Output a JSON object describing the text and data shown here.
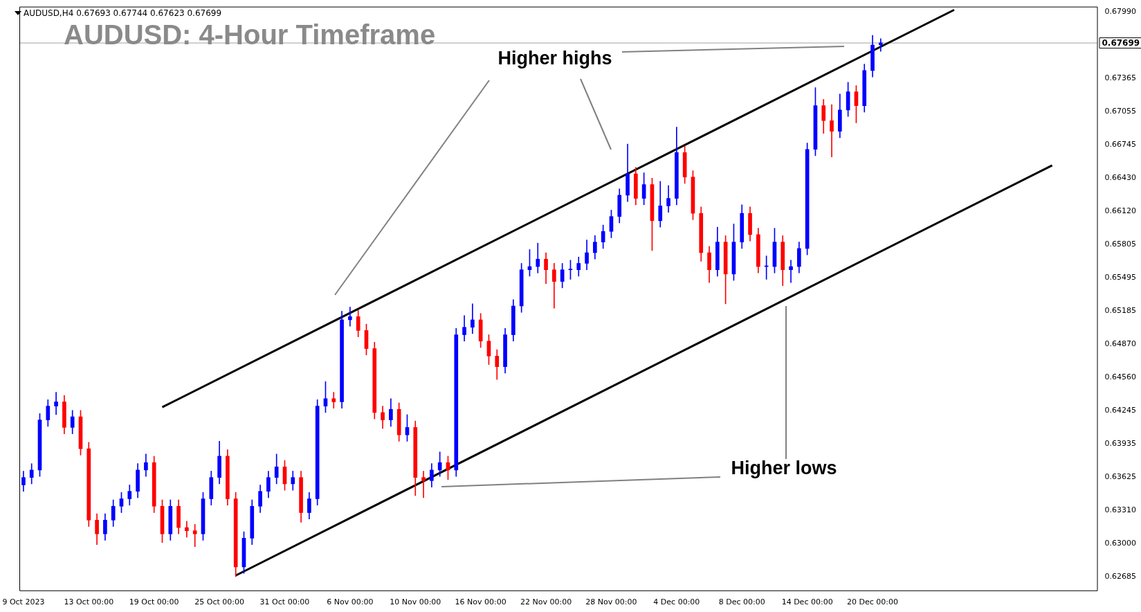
{
  "chart_data": {
    "type": "candlestick",
    "title": "AUDUSD: 4-Hour Timeframe",
    "annotations": [
      "AUDUSD,H4  0.67693 0.67744 0.67623 0.67699",
      "Higher highs",
      "Higher lows"
    ],
    "categories": [
      "9 Oct 2023",
      null,
      null,
      null,
      null,
      null,
      null,
      null,
      "13 Oct 00:00",
      null,
      null,
      null,
      null,
      null,
      null,
      null,
      "19 Oct 00:00",
      null,
      null,
      null,
      null,
      null,
      null,
      null,
      "25 Oct 00:00",
      null,
      null,
      null,
      null,
      null,
      null,
      null,
      "31 Oct 00:00",
      null,
      null,
      null,
      null,
      null,
      null,
      null,
      "6 Nov 00:00",
      null,
      null,
      null,
      null,
      null,
      null,
      null,
      "10 Nov 00:00",
      null,
      null,
      null,
      null,
      null,
      null,
      null,
      "16 Nov 00:00",
      null,
      null,
      null,
      null,
      null,
      null,
      null,
      "22 Nov 00:00",
      null,
      null,
      null,
      null,
      null,
      null,
      null,
      "28 Nov 00:00",
      null,
      null,
      null,
      null,
      null,
      null,
      null,
      "4 Dec 00:00",
      null,
      null,
      null,
      null,
      null,
      null,
      null,
      "8 Dec 00:00",
      null,
      null,
      null,
      null,
      null,
      null,
      null,
      "14 Dec 00:00",
      null,
      null,
      null,
      null,
      null,
      null,
      null,
      "20 Dec 00:00",
      null,
      null,
      null,
      null,
      null,
      null,
      null,
      null,
      null,
      null,
      null,
      null,
      null,
      null,
      null,
      null,
      null,
      null,
      null,
      null,
      null,
      null,
      null,
      null,
      null,
      null,
      null
    ],
    "ohlc": [
      [
        0.6355,
        0.6368,
        0.6349,
        0.6362
      ],
      [
        0.6362,
        0.6375,
        0.6356,
        0.6369
      ],
      [
        0.6369,
        0.6422,
        0.6363,
        0.6416
      ],
      [
        0.6416,
        0.6435,
        0.641,
        0.6429
      ],
      [
        0.6429,
        0.6442,
        0.6421,
        0.6433
      ],
      [
        0.6433,
        0.6439,
        0.6403,
        0.6409
      ],
      [
        0.6409,
        0.6425,
        0.6403,
        0.6419
      ],
      [
        0.6419,
        0.6425,
        0.6383,
        0.6389
      ],
      [
        0.6389,
        0.6395,
        0.6316,
        0.6322
      ],
      [
        0.6322,
        0.6328,
        0.6299,
        0.6309
      ],
      [
        0.6309,
        0.6328,
        0.6303,
        0.6322
      ],
      [
        0.6322,
        0.6341,
        0.6316,
        0.6335
      ],
      [
        0.6335,
        0.6348,
        0.6329,
        0.6342
      ],
      [
        0.6342,
        0.6355,
        0.6336,
        0.6349
      ],
      [
        0.6349,
        0.6375,
        0.6343,
        0.6369
      ],
      [
        0.6369,
        0.6384,
        0.6363,
        0.6376
      ],
      [
        0.6376,
        0.6382,
        0.6329,
        0.6335
      ],
      [
        0.6335,
        0.6341,
        0.6301,
        0.6309
      ],
      [
        0.6309,
        0.6341,
        0.6303,
        0.6335
      ],
      [
        0.6335,
        0.6341,
        0.6309,
        0.6315
      ],
      [
        0.6315,
        0.6321,
        0.6306,
        0.6312
      ],
      [
        0.6312,
        0.6318,
        0.6297,
        0.6309
      ],
      [
        0.6309,
        0.6348,
        0.6303,
        0.6342
      ],
      [
        0.6342,
        0.6368,
        0.6336,
        0.6362
      ],
      [
        0.6362,
        0.6396,
        0.6356,
        0.6382
      ],
      [
        0.6382,
        0.6388,
        0.6336,
        0.6342
      ],
      [
        0.6342,
        0.6348,
        0.6269,
        0.6278
      ],
      [
        0.6278,
        0.6311,
        0.6272,
        0.6305
      ],
      [
        0.6305,
        0.6341,
        0.6299,
        0.6335
      ],
      [
        0.6335,
        0.6355,
        0.6329,
        0.6349
      ],
      [
        0.6349,
        0.6368,
        0.6343,
        0.6362
      ],
      [
        0.6362,
        0.6384,
        0.6356,
        0.6372
      ],
      [
        0.6372,
        0.6378,
        0.635,
        0.6356
      ],
      [
        0.6356,
        0.6368,
        0.635,
        0.6362
      ],
      [
        0.6362,
        0.6368,
        0.632,
        0.6329
      ],
      [
        0.6329,
        0.6348,
        0.6323,
        0.6342
      ],
      [
        0.6342,
        0.6435,
        0.6336,
        0.6429
      ],
      [
        0.6429,
        0.6452,
        0.6423,
        0.6436
      ],
      [
        0.6436,
        0.6442,
        0.6427,
        0.6433
      ],
      [
        0.6433,
        0.6518,
        0.6427,
        0.651
      ],
      [
        0.651,
        0.6522,
        0.6504,
        0.6513
      ],
      [
        0.6513,
        0.6519,
        0.6494,
        0.65
      ],
      [
        0.65,
        0.6506,
        0.6477,
        0.6483
      ],
      [
        0.6483,
        0.6489,
        0.6417,
        0.6423
      ],
      [
        0.6423,
        0.6429,
        0.6408,
        0.6416
      ],
      [
        0.6416,
        0.6436,
        0.641,
        0.6426
      ],
      [
        0.6426,
        0.6432,
        0.6396,
        0.6402
      ],
      [
        0.6402,
        0.6421,
        0.6396,
        0.6409
      ],
      [
        0.6409,
        0.6415,
        0.6345,
        0.6362
      ],
      [
        0.6362,
        0.6368,
        0.6343,
        0.6359
      ],
      [
        0.6359,
        0.6375,
        0.6353,
        0.6369
      ],
      [
        0.6369,
        0.6386,
        0.6363,
        0.6376
      ],
      [
        0.6376,
        0.6382,
        0.636,
        0.6369
      ],
      [
        0.6369,
        0.6502,
        0.6363,
        0.6496
      ],
      [
        0.6496,
        0.6514,
        0.649,
        0.6503
      ],
      [
        0.6503,
        0.6525,
        0.6497,
        0.651
      ],
      [
        0.651,
        0.6516,
        0.6484,
        0.649
      ],
      [
        0.649,
        0.6496,
        0.6468,
        0.6476
      ],
      [
        0.6476,
        0.6482,
        0.6454,
        0.6466
      ],
      [
        0.6466,
        0.6502,
        0.646,
        0.6496
      ],
      [
        0.6496,
        0.6529,
        0.649,
        0.6523
      ],
      [
        0.6523,
        0.6563,
        0.6517,
        0.6557
      ],
      [
        0.6557,
        0.6576,
        0.6551,
        0.656
      ],
      [
        0.656,
        0.6582,
        0.6554,
        0.6567
      ],
      [
        0.6567,
        0.6573,
        0.6544,
        0.6557
      ],
      [
        0.6557,
        0.6563,
        0.6521,
        0.6546
      ],
      [
        0.6546,
        0.6563,
        0.654,
        0.6557
      ],
      [
        0.6557,
        0.6566,
        0.6548,
        0.6557
      ],
      [
        0.6557,
        0.6569,
        0.6551,
        0.6563
      ],
      [
        0.6563,
        0.6585,
        0.6557,
        0.6573
      ],
      [
        0.6573,
        0.6589,
        0.6567,
        0.6583
      ],
      [
        0.6583,
        0.6599,
        0.6577,
        0.6593
      ],
      [
        0.6593,
        0.6613,
        0.6587,
        0.6607
      ],
      [
        0.6607,
        0.6633,
        0.6601,
        0.6627
      ],
      [
        0.6627,
        0.6675,
        0.6621,
        0.6647
      ],
      [
        0.6647,
        0.6653,
        0.6618,
        0.6624
      ],
      [
        0.6624,
        0.6648,
        0.6618,
        0.6637
      ],
      [
        0.6637,
        0.6643,
        0.6575,
        0.6603
      ],
      [
        0.6603,
        0.664,
        0.6597,
        0.6617
      ],
      [
        0.6617,
        0.6636,
        0.6611,
        0.6624
      ],
      [
        0.6624,
        0.6691,
        0.6618,
        0.6667
      ],
      [
        0.6667,
        0.6673,
        0.6638,
        0.6644
      ],
      [
        0.6644,
        0.665,
        0.6604,
        0.661
      ],
      [
        0.661,
        0.6616,
        0.6565,
        0.6573
      ],
      [
        0.6573,
        0.6579,
        0.6545,
        0.6557
      ],
      [
        0.6557,
        0.6597,
        0.6551,
        0.6583
      ],
      [
        0.6583,
        0.6589,
        0.6525,
        0.6553
      ],
      [
        0.6553,
        0.66,
        0.6547,
        0.6583
      ],
      [
        0.6583,
        0.6618,
        0.6577,
        0.661
      ],
      [
        0.661,
        0.6616,
        0.6584,
        0.659
      ],
      [
        0.659,
        0.6596,
        0.6554,
        0.656
      ],
      [
        0.656,
        0.657,
        0.6548,
        0.656
      ],
      [
        0.656,
        0.6596,
        0.6554,
        0.6583
      ],
      [
        0.6583,
        0.6589,
        0.6542,
        0.6557
      ],
      [
        0.6557,
        0.6566,
        0.6545,
        0.656
      ],
      [
        0.656,
        0.6583,
        0.6554,
        0.6577
      ],
      [
        0.6577,
        0.6676,
        0.6571,
        0.667
      ],
      [
        0.667,
        0.6728,
        0.6664,
        0.6711
      ],
      [
        0.6711,
        0.6717,
        0.6685,
        0.6697
      ],
      [
        0.6697,
        0.6712,
        0.6663,
        0.6687
      ],
      [
        0.6687,
        0.6722,
        0.6681,
        0.6707
      ],
      [
        0.6707,
        0.6733,
        0.6701,
        0.6724
      ],
      [
        0.6724,
        0.673,
        0.6695,
        0.6711
      ],
      [
        0.6711,
        0.675,
        0.6705,
        0.6744
      ],
      [
        0.6744,
        0.6777,
        0.6738,
        0.6768
      ],
      [
        0.6768,
        0.6774,
        0.6762,
        0.677
      ],
      null,
      null,
      null,
      null,
      null,
      null,
      null,
      null,
      null,
      null,
      null,
      null,
      null,
      null,
      null,
      null,
      null,
      null,
      null,
      null,
      null,
      null,
      null,
      null,
      null,
      null
    ],
    "colors": [
      "#0000ff",
      "#0000ff",
      "#0000ff",
      "#0000ff",
      "#0000ff",
      "#ff0000",
      "#0000ff",
      "#ff0000",
      "#ff0000",
      "#ff0000",
      "#0000ff",
      "#0000ff",
      "#0000ff",
      "#0000ff",
      "#0000ff",
      "#0000ff",
      "#ff0000",
      "#ff0000",
      "#0000ff",
      "#ff0000",
      "#ff0000",
      "#ff0000",
      "#0000ff",
      "#0000ff",
      "#0000ff",
      "#ff0000",
      "#ff0000",
      "#0000ff",
      "#0000ff",
      "#0000ff",
      "#0000ff",
      "#0000ff",
      "#ff0000",
      "#0000ff",
      "#ff0000",
      "#0000ff",
      "#0000ff",
      "#0000ff",
      "#ff0000",
      "#0000ff",
      "#0000ff",
      "#ff0000",
      "#ff0000",
      "#ff0000",
      "#ff0000",
      "#0000ff",
      "#ff0000",
      "#0000ff",
      "#ff0000",
      "#ff0000",
      "#0000ff",
      "#0000ff",
      "#ff0000",
      "#0000ff",
      "#0000ff",
      "#0000ff",
      "#ff0000",
      "#ff0000",
      "#ff0000",
      "#0000ff",
      "#0000ff",
      "#0000ff",
      "#0000ff",
      "#0000ff",
      "#ff0000",
      "#ff0000",
      "#0000ff",
      "#0000ff",
      "#0000ff",
      "#0000ff",
      "#0000ff",
      "#0000ff",
      "#0000ff",
      "#0000ff",
      "#0000ff",
      "#ff0000",
      "#0000ff",
      "#ff0000",
      "#0000ff",
      "#0000ff",
      "#0000ff",
      "#ff0000",
      "#ff0000",
      "#ff0000",
      "#ff0000",
      "#0000ff",
      "#ff0000",
      "#0000ff",
      "#0000ff",
      "#ff0000",
      "#ff0000",
      "#0000ff",
      "#0000ff",
      "#ff0000",
      "#0000ff",
      "#0000ff",
      "#0000ff",
      "#0000ff",
      "#ff0000",
      "#ff0000",
      "#0000ff",
      "#0000ff",
      "#ff0000",
      "#0000ff",
      "#0000ff",
      "#0000ff",
      null,
      null,
      null,
      null,
      null,
      null,
      null,
      null,
      null,
      null,
      null,
      null,
      null,
      null,
      null,
      null,
      null,
      null,
      null,
      null,
      null,
      null,
      null,
      null,
      null,
      null
    ],
    "series": [
      {
        "type": "line",
        "color": "#000000",
        "values": [
          null,
          null,
          null,
          null,
          null,
          null,
          null,
          null,
          null,
          null,
          null,
          null,
          null,
          null,
          null,
          null,
          null,
          0.6428,
          null,
          null,
          null,
          null,
          null,
          null,
          null,
          null,
          null,
          null,
          null,
          null,
          null,
          null,
          null,
          null,
          null,
          null,
          null,
          null,
          null,
          null,
          null,
          null,
          null,
          null,
          null,
          null,
          null,
          null,
          null,
          null,
          null,
          null,
          null,
          null,
          null,
          null,
          null,
          null,
          null,
          null,
          null,
          null,
          null,
          null,
          null,
          null,
          null,
          null,
          null,
          null,
          null,
          null,
          null,
          null,
          null,
          null,
          null,
          null,
          null,
          null,
          null,
          null,
          null,
          null,
          null,
          null,
          null,
          null,
          null,
          null,
          null,
          null,
          null,
          null,
          null,
          null,
          null,
          null,
          null,
          null,
          null,
          null,
          null,
          null,
          null,
          null,
          null,
          null,
          null,
          null,
          null,
          null,
          null,
          null,
          0.6801,
          null,
          null,
          null,
          null,
          null,
          null,
          null,
          null,
          null,
          null,
          null,
          null,
          null,
          null,
          null,
          null,
          null
        ]
      },
      {
        "type": "line",
        "color": "#000000",
        "values": [
          null,
          null,
          null,
          null,
          null,
          null,
          null,
          null,
          null,
          null,
          null,
          null,
          null,
          null,
          null,
          null,
          null,
          null,
          null,
          null,
          null,
          null,
          null,
          null,
          null,
          null,
          0.627,
          null,
          null,
          null,
          null,
          null,
          null,
          null,
          null,
          null,
          null,
          null,
          null,
          null,
          null,
          null,
          null,
          null,
          null,
          null,
          null,
          null,
          null,
          null,
          null,
          null,
          null,
          null,
          null,
          null,
          null,
          null,
          null,
          null,
          null,
          null,
          null,
          null,
          null,
          null,
          null,
          null,
          null,
          null,
          null,
          null,
          null,
          null,
          null,
          null,
          null,
          null,
          null,
          null,
          null,
          null,
          null,
          null,
          null,
          null,
          null,
          null,
          null,
          null,
          null,
          null,
          null,
          null,
          null,
          null,
          null,
          null,
          null,
          null,
          null,
          null,
          null,
          null,
          null,
          null,
          null,
          null,
          null,
          null,
          null,
          null,
          null,
          null,
          null,
          null,
          null,
          null,
          null,
          null,
          null,
          null,
          null,
          null,
          null,
          null,
          0.6655,
          null,
          null,
          null,
          null,
          null
        ]
      }
    ],
    "ylim": [
      0.6256,
      0.6804
    ],
    "yticks": [
      {
        "value": 0.6799,
        "label": "0.67990"
      },
      {
        "value": 0.67365,
        "label": "0.67365"
      },
      {
        "value": 0.67055,
        "label": "0.67055"
      },
      {
        "value": 0.66745,
        "label": "0.66745"
      },
      {
        "value": 0.6643,
        "label": "0.66430"
      },
      {
        "value": 0.6612,
        "label": "0.66120"
      },
      {
        "value": 0.65805,
        "label": "0.65805"
      },
      {
        "value": 0.65495,
        "label": "0.65495"
      },
      {
        "value": 0.65185,
        "label": "0.65185"
      },
      {
        "value": 0.6487,
        "label": "0.64870"
      },
      {
        "value": 0.6456,
        "label": "0.64560"
      },
      {
        "value": 0.64245,
        "label": "0.64245"
      },
      {
        "value": 0.63935,
        "label": "0.63935"
      },
      {
        "value": 0.63625,
        "label": "0.63625"
      },
      {
        "value": 0.6331,
        "label": "0.63310"
      },
      {
        "value": 0.63,
        "label": "0.63000"
      },
      {
        "value": 0.62685,
        "label": "0.62685"
      }
    ],
    "ref_lines": [
      {
        "axis": "y",
        "value": 0.67699,
        "label": "0.67699",
        "color": "#a0a0a0"
      }
    ]
  }
}
